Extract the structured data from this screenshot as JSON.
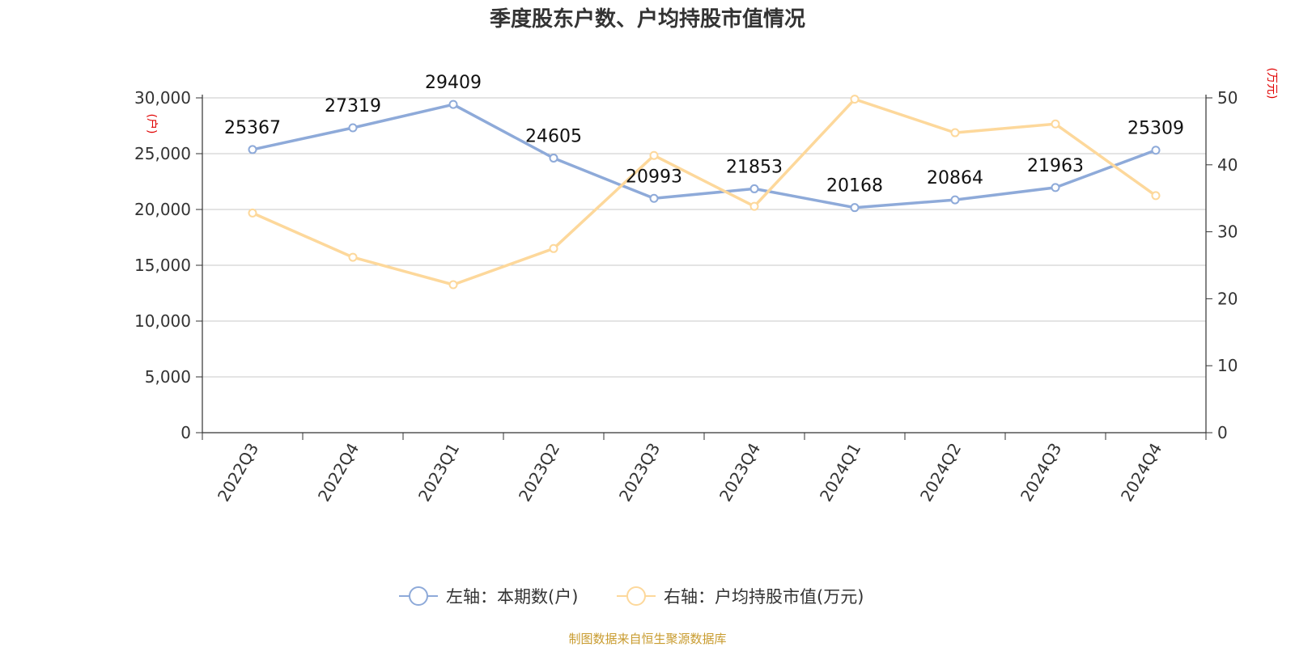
{
  "chart_data": {
    "type": "line",
    "title": "季度股东户数、户均持股市值情况",
    "categories": [
      "2022Q3",
      "2022Q4",
      "2023Q1",
      "2023Q2",
      "2023Q3",
      "2023Q4",
      "2024Q1",
      "2024Q2",
      "2024Q3",
      "2024Q4"
    ],
    "y_left": {
      "unit": "(户)",
      "range": [
        0,
        30000
      ],
      "ticks": [
        "0",
        "5,000",
        "10,000",
        "15,000",
        "20,000",
        "25,000",
        "30,000"
      ]
    },
    "y_right": {
      "unit": "(万元)",
      "range": [
        0,
        50
      ],
      "ticks": [
        "0",
        "10",
        "20",
        "30",
        "40",
        "50"
      ]
    },
    "grid": true,
    "legend_position": "bottom",
    "series": [
      {
        "name": "左轴：本期数(户)",
        "axis": "left",
        "color": "#8eaad9",
        "values": [
          25367,
          27319,
          29409,
          24605,
          20993,
          21853,
          20168,
          20864,
          21963,
          25309
        ],
        "labels": [
          "25367",
          "27319",
          "29409",
          "24605",
          "20993",
          "21853",
          "20168",
          "20864",
          "21963",
          "25309"
        ]
      },
      {
        "name": "右轴：户均持股市值(万元)",
        "axis": "right",
        "color": "#fdd89b",
        "values": [
          32.8,
          26.2,
          22.1,
          27.5,
          41.4,
          33.8,
          49.8,
          44.8,
          46.1,
          35.4
        ]
      }
    ],
    "source": "制图数据来自恒生聚源数据库"
  }
}
